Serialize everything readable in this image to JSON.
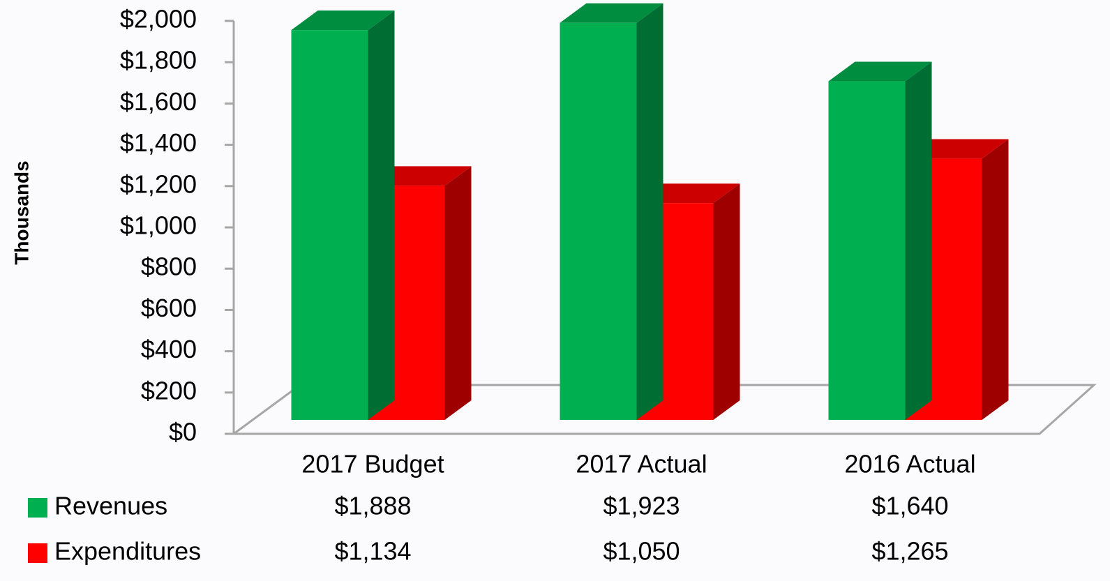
{
  "chart_data": {
    "type": "bar3d",
    "y_label": "Thousands",
    "categories": [
      "2017 Budget",
      "2017 Actual",
      "2016 Actual"
    ],
    "series": [
      {
        "name": "Revenues",
        "color": "#00b050",
        "values": [
          1888,
          1923,
          1640
        ],
        "value_labels": [
          "$1,888",
          "$1,923",
          "$1,640"
        ]
      },
      {
        "name": "Expenditures",
        "color": "#ff0000",
        "values": [
          1134,
          1050,
          1265
        ],
        "value_labels": [
          "$1,134",
          "$1,050",
          "$1,265"
        ]
      }
    ],
    "ylim": [
      0,
      2000
    ],
    "yticks": [
      {
        "value": 0,
        "label": "$0"
      },
      {
        "value": 200,
        "label": "$200"
      },
      {
        "value": 400,
        "label": "$400"
      },
      {
        "value": 600,
        "label": "$600"
      },
      {
        "value": 800,
        "label": "$800"
      },
      {
        "value": 1000,
        "label": "$1,000"
      },
      {
        "value": 1200,
        "label": "$1,200"
      },
      {
        "value": 1400,
        "label": "$1,400"
      },
      {
        "value": 1600,
        "label": "$1,600"
      },
      {
        "value": 1800,
        "label": "$1,800"
      },
      {
        "value": 2000,
        "label": "$2,000"
      }
    ],
    "grid": false
  }
}
